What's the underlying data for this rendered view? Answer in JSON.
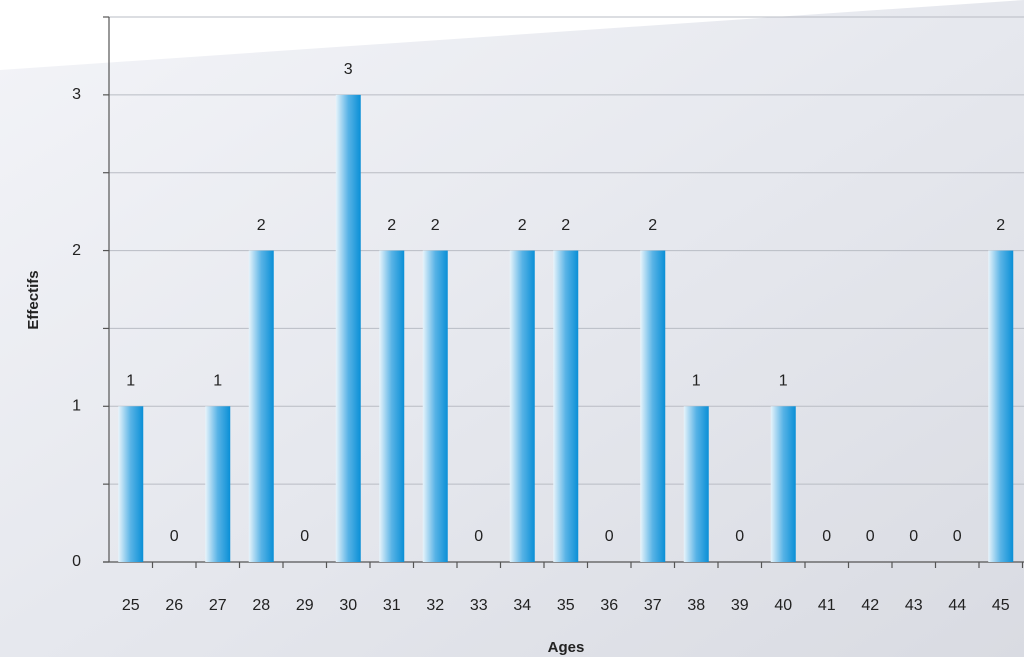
{
  "chart_data": {
    "type": "bar",
    "x_label": "Ages",
    "y_label": "Effectifs",
    "categories": [
      "25",
      "26",
      "27",
      "28",
      "29",
      "30",
      "31",
      "32",
      "33",
      "34",
      "35",
      "36",
      "37",
      "38",
      "39",
      "40",
      "41",
      "42",
      "43",
      "44",
      "45"
    ],
    "values": [
      1,
      0,
      1,
      2,
      0,
      3,
      2,
      2,
      0,
      2,
      2,
      0,
      2,
      1,
      0,
      1,
      0,
      0,
      0,
      0,
      2
    ],
    "color": "#0a8fd6",
    "ylim": [
      0,
      3.5
    ],
    "yticks": [
      0,
      1,
      2,
      3
    ],
    "minor_yticks": [
      0.5,
      1.5,
      2.5,
      3.5
    ],
    "grid": true,
    "data_labels": true
  }
}
